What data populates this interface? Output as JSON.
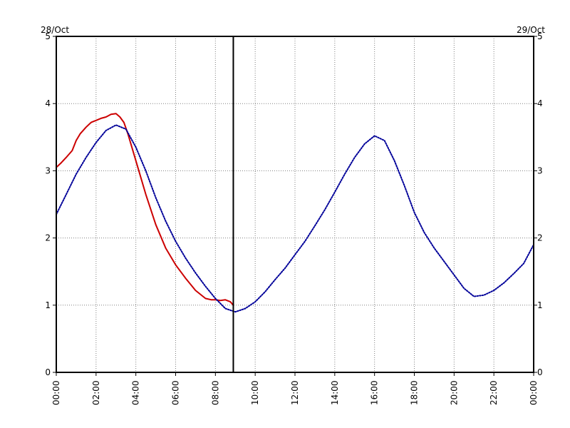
{
  "chart_data": {
    "type": "line",
    "left_date": "28/Oct",
    "right_date": "29/Oct",
    "xlim": [
      0,
      24
    ],
    "ylim": [
      0,
      5
    ],
    "x_ticks": [
      0,
      2,
      4,
      6,
      8,
      10,
      12,
      14,
      16,
      18,
      20,
      22,
      24
    ],
    "x_tick_labels": [
      "00:00",
      "02:00",
      "04:00",
      "06:00",
      "08:00",
      "10:00",
      "12:00",
      "14:00",
      "16:00",
      "18:00",
      "20:00",
      "22:00",
      "00:00"
    ],
    "y_ticks": [
      0,
      1,
      2,
      3,
      4,
      5
    ],
    "y_tick_labels": [
      "0",
      "1",
      "2",
      "3",
      "4",
      "5"
    ],
    "grid": true,
    "current_time_marker": 8.9,
    "series": [
      {
        "color": "#cc0000",
        "style": "solid",
        "x": [
          0.0,
          0.25,
          0.5,
          0.8,
          1.0,
          1.2,
          1.5,
          1.75,
          2.0,
          2.25,
          2.5,
          2.75,
          3.0,
          3.2,
          3.4,
          3.6,
          4.0,
          4.5,
          5.0,
          5.5,
          6.0,
          6.5,
          7.0,
          7.5,
          7.8,
          8.0,
          8.25,
          8.5,
          8.75,
          8.9
        ],
        "y": [
          3.05,
          3.12,
          3.2,
          3.3,
          3.45,
          3.55,
          3.65,
          3.72,
          3.75,
          3.78,
          3.8,
          3.84,
          3.85,
          3.8,
          3.72,
          3.55,
          3.15,
          2.65,
          2.2,
          1.85,
          1.6,
          1.4,
          1.22,
          1.1,
          1.08,
          1.08,
          1.07,
          1.08,
          1.05,
          1.0
        ]
      },
      {
        "color": "#000099",
        "style": "dotted",
        "x": [
          0.0,
          0.5,
          1.0,
          1.5,
          2.0,
          2.5,
          3.0,
          3.5,
          4.0,
          4.5,
          5.0,
          5.5,
          6.0,
          6.5,
          7.0,
          7.5,
          8.0,
          8.5,
          9.0,
          9.5,
          10.0,
          10.5,
          11.0,
          11.5,
          12.0,
          12.5,
          13.0,
          13.5,
          14.0,
          14.5,
          15.0,
          15.5,
          16.0,
          16.5,
          17.0,
          17.5,
          18.0,
          18.5,
          19.0,
          19.5,
          20.0,
          20.5,
          21.0,
          21.5,
          22.0,
          22.5,
          23.0,
          23.5,
          24.0
        ],
        "y": [
          2.35,
          2.65,
          2.95,
          3.2,
          3.42,
          3.6,
          3.68,
          3.62,
          3.35,
          3.0,
          2.6,
          2.25,
          1.95,
          1.7,
          1.48,
          1.28,
          1.1,
          0.95,
          0.9,
          0.95,
          1.05,
          1.2,
          1.38,
          1.55,
          1.75,
          1.95,
          2.18,
          2.42,
          2.68,
          2.95,
          3.2,
          3.4,
          3.52,
          3.45,
          3.15,
          2.78,
          2.38,
          2.08,
          1.85,
          1.65,
          1.45,
          1.25,
          1.13,
          1.15,
          1.22,
          1.33,
          1.47,
          1.62,
          1.9
        ]
      }
    ]
  }
}
